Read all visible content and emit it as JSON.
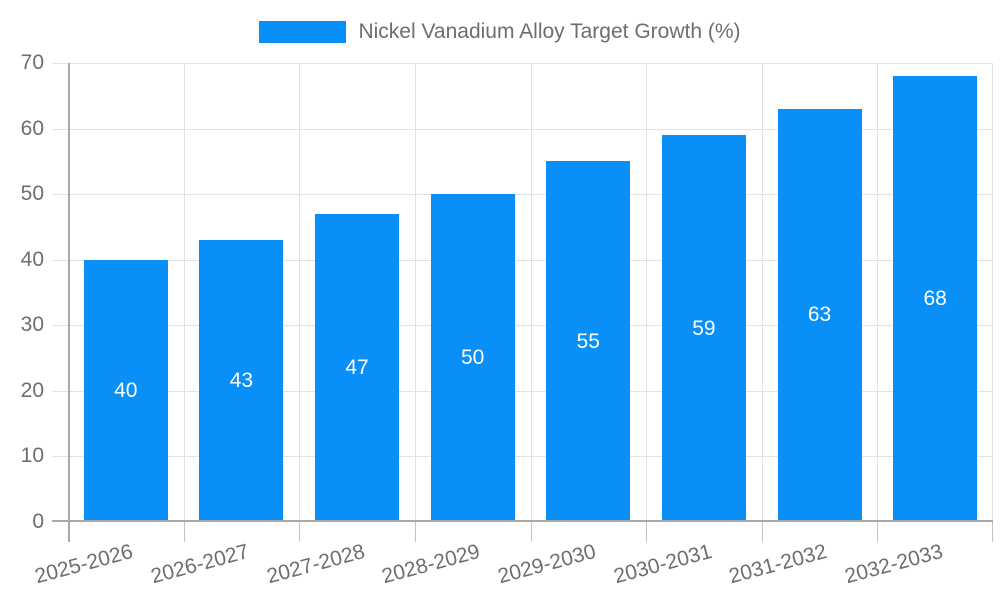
{
  "legend": {
    "label": "Nickel Vanadium Alloy Target Growth (%)"
  },
  "chart_data": {
    "type": "bar",
    "title": "Nickel Vanadium Alloy Target Growth (%)",
    "categories": [
      "2025-2026",
      "2026-2027",
      "2027-2028",
      "2028-2029",
      "2029-2030",
      "2030-2031",
      "2031-2032",
      "2032-2033"
    ],
    "series": [
      {
        "name": "Nickel Vanadium Alloy Target Growth (%)",
        "values": [
          40,
          43,
          47,
          50,
          55,
          59,
          63,
          68
        ]
      }
    ],
    "xlabel": "",
    "ylabel": "",
    "ylim": [
      0,
      70
    ],
    "y_ticks": [
      0,
      10,
      20,
      30,
      40,
      50,
      60,
      70
    ],
    "grid": "on",
    "legend_position": "top",
    "value_labels": "inside-center",
    "x_tick_rotation_deg": -15,
    "colors": {
      "bar": "#0890f8",
      "grid": "#e2e2e2",
      "axis": "#a8a8a8",
      "tick": "#c2c2c2",
      "text": "#6e6e6e",
      "value_label": "#ffffff",
      "background": "#ffffff"
    }
  }
}
